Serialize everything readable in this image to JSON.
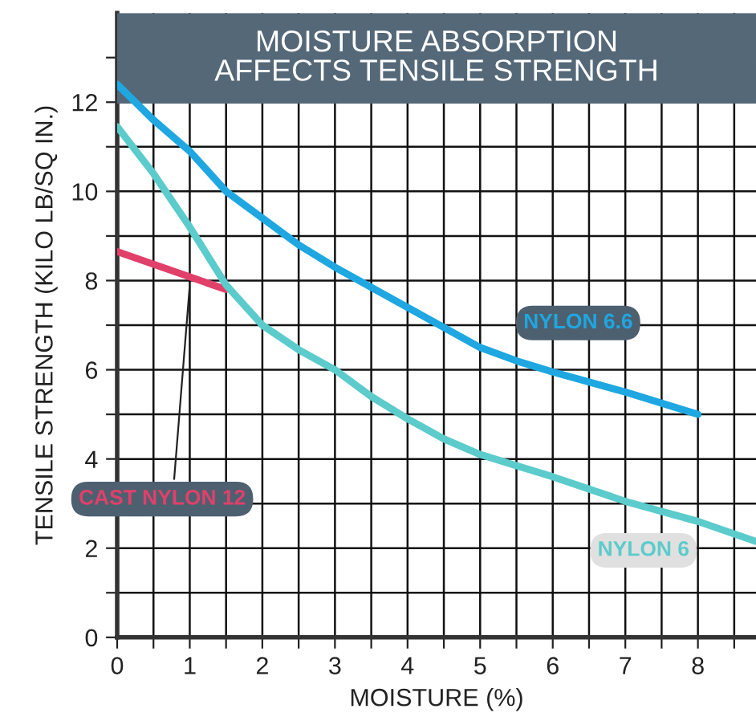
{
  "chart_data": {
    "type": "line",
    "title": "MOISTURE ABSORPTION\nAFFECTS TENSILE STRENGTH",
    "xlabel": "MOISTURE (%)",
    "ylabel": "TENSILE STRENGTH (KILO LB/SQ IN.)",
    "xlim": [
      0,
      8.8
    ],
    "ylim": [
      0,
      14
    ],
    "xticks": [
      0,
      {
        "value": 0.5,
        "label": null
      },
      1,
      {
        "value": 1.5,
        "label": null
      },
      2,
      {
        "value": 2.5,
        "label": null
      },
      3,
      {
        "value": 3.5,
        "label": null
      },
      4,
      {
        "value": 4.5,
        "label": null
      },
      5,
      {
        "value": 5.5,
        "label": null
      },
      6,
      {
        "value": 6.5,
        "label": null
      },
      7,
      {
        "value": 7.5,
        "label": null
      },
      8,
      {
        "value": 8.5,
        "label": null
      }
    ],
    "yticks": [
      0,
      {
        "value": 1,
        "label": null
      },
      2,
      {
        "value": 3,
        "label": null
      },
      4,
      {
        "value": 5,
        "label": null
      },
      6,
      {
        "value": 7,
        "label": null
      },
      8,
      {
        "value": 9,
        "label": null
      },
      10,
      {
        "value": 11,
        "label": null
      },
      12,
      {
        "value": 13,
        "label": null
      }
    ],
    "grid": true,
    "series": [
      {
        "name": "NYLON 6.6",
        "color": "#1ea7e1",
        "x": [
          0,
          0.5,
          1,
          1.5,
          2,
          2.5,
          3,
          3.5,
          4,
          4.5,
          5,
          5.5,
          6,
          7,
          8
        ],
        "values": [
          12.4,
          11.6,
          10.9,
          10.0,
          9.4,
          8.8,
          8.3,
          7.85,
          7.4,
          6.95,
          6.5,
          6.2,
          5.95,
          5.5,
          5.0
        ]
      },
      {
        "name": "CAST NYLON 12",
        "color": "#e0406a",
        "x": [
          0,
          1.5
        ],
        "values": [
          8.65,
          7.8
        ]
      },
      {
        "name": "NYLON 6",
        "color": "#5ccbcb",
        "x": [
          0,
          0.5,
          1,
          1.5,
          2,
          2.5,
          3,
          3.5,
          4,
          4.5,
          5,
          5.5,
          6,
          7,
          8,
          8.8
        ],
        "values": [
          11.45,
          10.4,
          9.2,
          7.9,
          7.0,
          6.45,
          6.0,
          5.4,
          4.9,
          4.45,
          4.1,
          3.85,
          3.6,
          3.05,
          2.6,
          2.15
        ]
      }
    ]
  }
}
